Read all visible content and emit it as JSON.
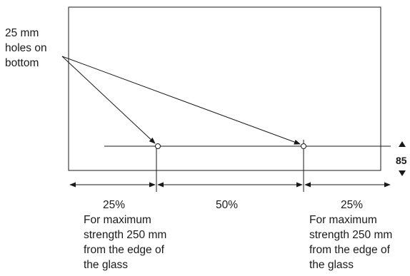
{
  "labels": {
    "holes": [
      "25 mm",
      "holes on",
      "bottom"
    ],
    "height": "85",
    "left_pct": "25%",
    "middle_pct": "50%",
    "right_pct": "25%",
    "left_note": [
      "For maximum",
      "strength 250 mm",
      "from the edge of",
      "the glass"
    ],
    "right_note": [
      "For maximum",
      "strength 250 mm",
      "from the edge of",
      "the glass"
    ]
  },
  "spacing": [
    0.25,
    0.5,
    0.25
  ]
}
